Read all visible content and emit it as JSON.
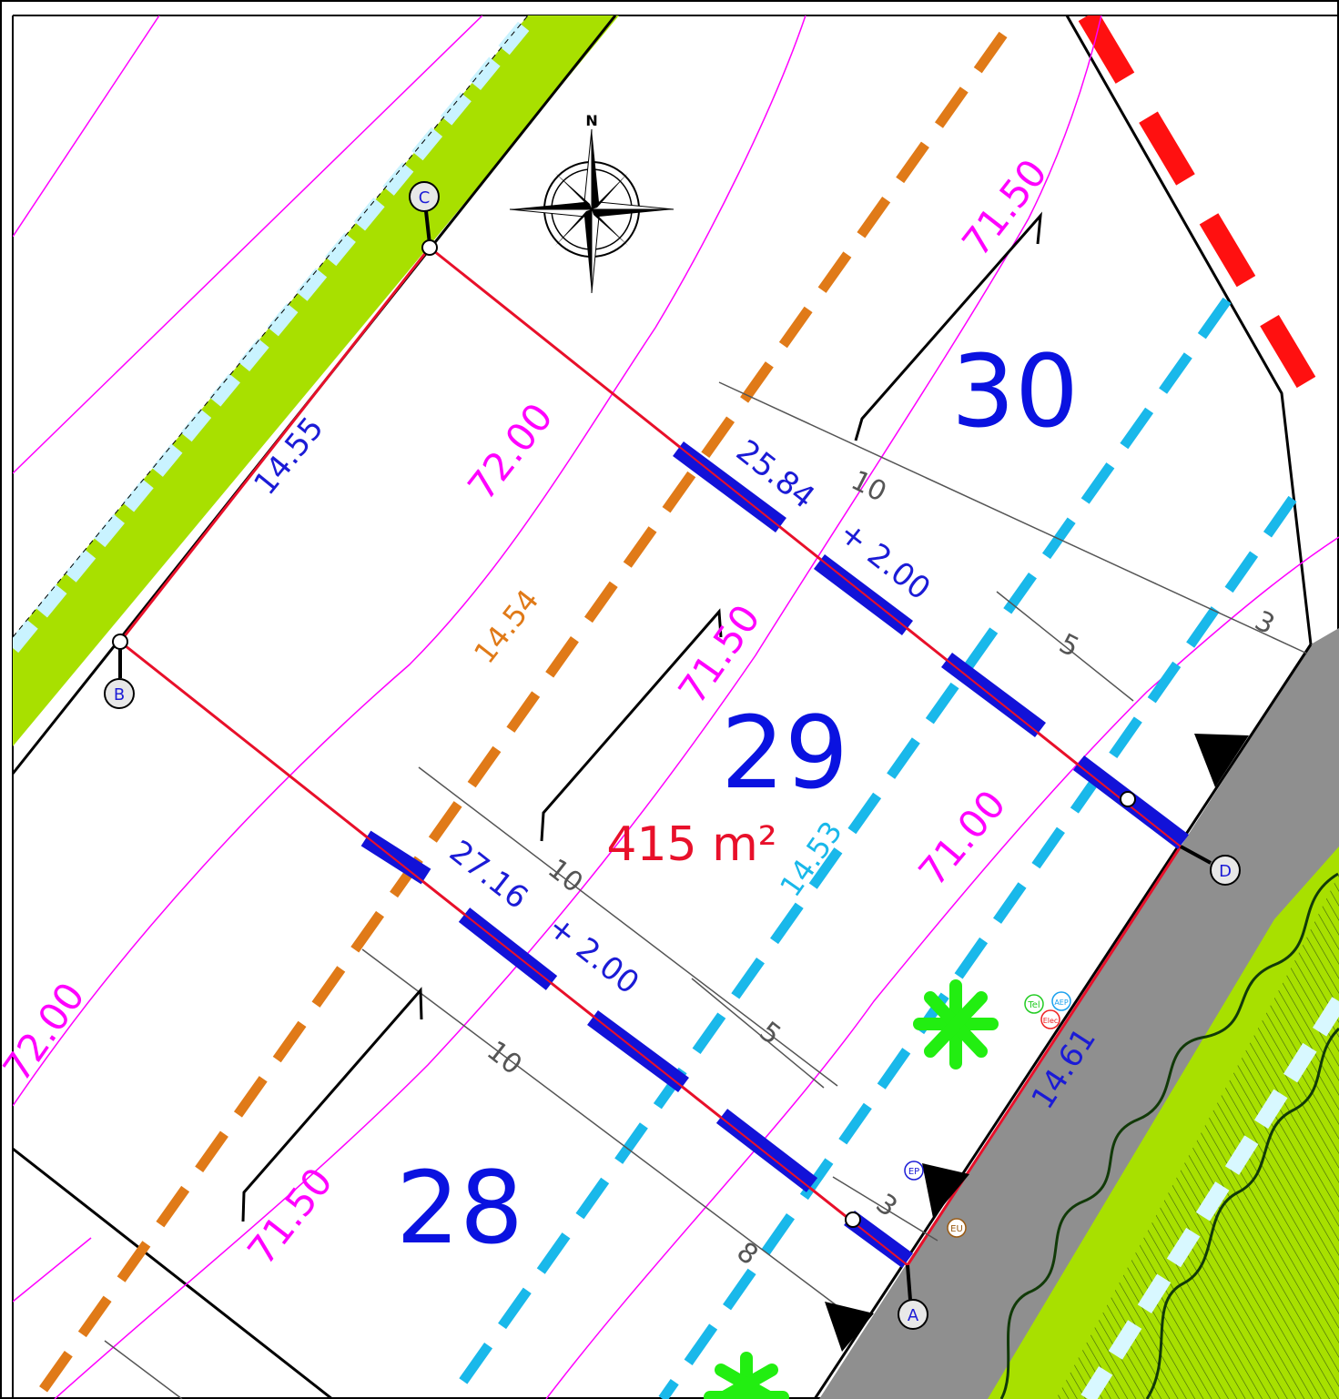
{
  "plan": {
    "lots": [
      {
        "number": "30",
        "color": "#0a12e0"
      },
      {
        "number": "29",
        "color": "#0a12e0",
        "area": "415 m²",
        "area_color": "#e8102a"
      },
      {
        "number": "28",
        "color": "#0a12e0"
      }
    ],
    "corners": [
      {
        "label": "A"
      },
      {
        "label": "B"
      },
      {
        "label": "C"
      },
      {
        "label": "D"
      }
    ],
    "boundary_dimensions": [
      {
        "id": "bc",
        "text": "14.55",
        "color": "#1b1bd6"
      },
      {
        "id": "ad",
        "text": "14.61",
        "color": "#1b1bd6"
      },
      {
        "id": "cd",
        "text": "25.84",
        "color": "#1b1bd6"
      },
      {
        "id": "cd_add",
        "text": "+ 2.00",
        "color": "#1b1bd6"
      },
      {
        "id": "ab",
        "text": "27.16",
        "color": "#1b1bd6"
      },
      {
        "id": "ab_add",
        "text": "+ 2.00",
        "color": "#1b1bd6"
      }
    ],
    "setback_dimensions": [
      {
        "id": "orange",
        "text": "14.54",
        "color": "#e07a18"
      },
      {
        "id": "cyan",
        "text": "14.53",
        "color": "#19b8ea"
      }
    ],
    "contour_labels": [
      {
        "id": "c1",
        "text": "72.00"
      },
      {
        "id": "c2",
        "text": "72.00"
      },
      {
        "id": "c3",
        "text": "71.50"
      },
      {
        "id": "c4",
        "text": "71.50"
      },
      {
        "id": "c5",
        "text": "71.50"
      },
      {
        "id": "c6",
        "text": "71.00"
      }
    ],
    "contour_color": "#ff00ff",
    "distance_labels": [
      {
        "id": "d1",
        "text": "10"
      },
      {
        "id": "d2",
        "text": "5"
      },
      {
        "id": "d3",
        "text": "3"
      },
      {
        "id": "d4",
        "text": "10"
      },
      {
        "id": "d5",
        "text": "5"
      },
      {
        "id": "d6",
        "text": "10"
      },
      {
        "id": "d7",
        "text": "8"
      },
      {
        "id": "d8",
        "text": "3"
      }
    ],
    "utilities": [
      {
        "id": "tel",
        "text": "Tel",
        "color": "#22cc22"
      },
      {
        "id": "aep",
        "text": "AEP",
        "color": "#1aa0ee"
      },
      {
        "id": "elec",
        "text": "Elec",
        "color": "#ee2222"
      },
      {
        "id": "ep",
        "text": "EP",
        "color": "#1b1bd6"
      },
      {
        "id": "eu",
        "text": "EU",
        "color": "#9a5a12"
      }
    ],
    "compass_label": "N",
    "colors": {
      "property_line": "#e8102a",
      "street": "#8f8f8f",
      "green_strip": "#a8e000",
      "setback_orange": "#e07a18",
      "setback_cyan": "#19b8ea",
      "dimension_blue": "#1212d8",
      "tree_symbol": "#22ee11",
      "red_dashes": "#ff1010"
    }
  }
}
